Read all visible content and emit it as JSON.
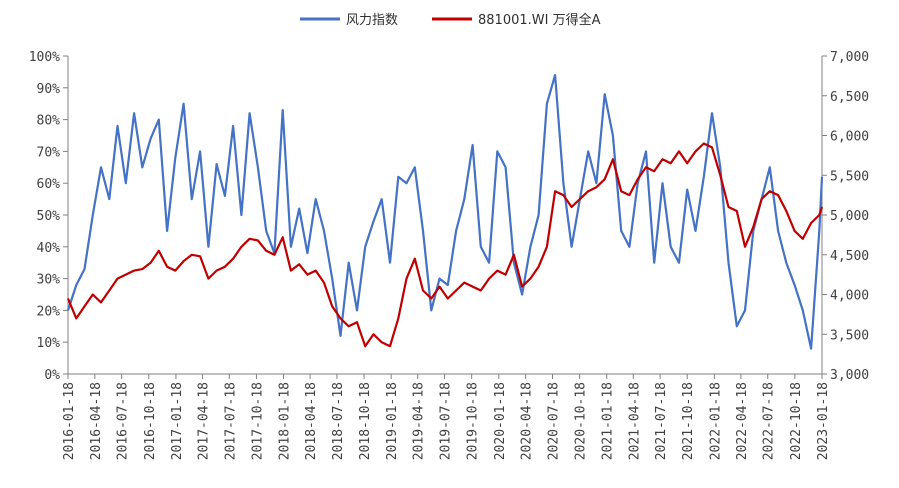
{
  "chart_data": {
    "type": "line",
    "legend_position": "top-center",
    "grid": false,
    "series": [
      {
        "name": "风力指数",
        "axis": "left",
        "color": "#4472C4",
        "unit": "%",
        "points": [
          [
            "2016-01-18",
            20
          ],
          [
            "2016-02-15",
            28
          ],
          [
            "2016-03-14",
            33
          ],
          [
            "2016-04-11",
            50
          ],
          [
            "2016-05-09",
            65
          ],
          [
            "2016-06-06",
            55
          ],
          [
            "2016-07-04",
            78
          ],
          [
            "2016-08-01",
            60
          ],
          [
            "2016-08-29",
            82
          ],
          [
            "2016-09-26",
            65
          ],
          [
            "2016-10-24",
            74
          ],
          [
            "2016-11-21",
            80
          ],
          [
            "2016-12-19",
            45
          ],
          [
            "2017-01-16",
            68
          ],
          [
            "2017-02-13",
            85
          ],
          [
            "2017-03-13",
            55
          ],
          [
            "2017-04-10",
            70
          ],
          [
            "2017-05-08",
            40
          ],
          [
            "2017-06-05",
            66
          ],
          [
            "2017-07-03",
            56
          ],
          [
            "2017-07-31",
            78
          ],
          [
            "2017-08-28",
            50
          ],
          [
            "2017-09-25",
            82
          ],
          [
            "2017-10-23",
            65
          ],
          [
            "2017-11-20",
            45
          ],
          [
            "2017-12-18",
            38
          ],
          [
            "2018-01-15",
            83
          ],
          [
            "2018-02-12",
            40
          ],
          [
            "2018-03-12",
            52
          ],
          [
            "2018-04-09",
            38
          ],
          [
            "2018-05-07",
            55
          ],
          [
            "2018-06-04",
            45
          ],
          [
            "2018-07-02",
            30
          ],
          [
            "2018-07-30",
            12
          ],
          [
            "2018-08-27",
            35
          ],
          [
            "2018-09-24",
            20
          ],
          [
            "2018-10-22",
            40
          ],
          [
            "2018-11-19",
            48
          ],
          [
            "2018-12-17",
            55
          ],
          [
            "2019-01-14",
            35
          ],
          [
            "2019-02-11",
            62
          ],
          [
            "2019-03-11",
            60
          ],
          [
            "2019-04-08",
            65
          ],
          [
            "2019-05-06",
            45
          ],
          [
            "2019-06-03",
            20
          ],
          [
            "2019-07-01",
            30
          ],
          [
            "2019-07-29",
            28
          ],
          [
            "2019-08-26",
            45
          ],
          [
            "2019-09-23",
            55
          ],
          [
            "2019-10-21",
            72
          ],
          [
            "2019-11-18",
            40
          ],
          [
            "2019-12-16",
            35
          ],
          [
            "2020-01-13",
            70
          ],
          [
            "2020-02-10",
            65
          ],
          [
            "2020-03-09",
            35
          ],
          [
            "2020-04-06",
            25
          ],
          [
            "2020-05-04",
            40
          ],
          [
            "2020-06-01",
            50
          ],
          [
            "2020-06-29",
            85
          ],
          [
            "2020-07-27",
            94
          ],
          [
            "2020-08-24",
            60
          ],
          [
            "2020-09-21",
            40
          ],
          [
            "2020-10-19",
            55
          ],
          [
            "2020-11-16",
            70
          ],
          [
            "2020-12-14",
            60
          ],
          [
            "2021-01-11",
            88
          ],
          [
            "2021-02-08",
            75
          ],
          [
            "2021-03-08",
            45
          ],
          [
            "2021-04-05",
            40
          ],
          [
            "2021-05-03",
            60
          ],
          [
            "2021-05-31",
            70
          ],
          [
            "2021-06-28",
            35
          ],
          [
            "2021-07-26",
            60
          ],
          [
            "2021-08-23",
            40
          ],
          [
            "2021-09-20",
            35
          ],
          [
            "2021-10-18",
            58
          ],
          [
            "2021-11-15",
            45
          ],
          [
            "2021-12-13",
            62
          ],
          [
            "2022-01-10",
            82
          ],
          [
            "2022-02-07",
            65
          ],
          [
            "2022-03-07",
            35
          ],
          [
            "2022-04-04",
            15
          ],
          [
            "2022-05-02",
            20
          ],
          [
            "2022-05-30",
            45
          ],
          [
            "2022-06-27",
            55
          ],
          [
            "2022-07-25",
            65
          ],
          [
            "2022-08-22",
            45
          ],
          [
            "2022-09-19",
            35
          ],
          [
            "2022-10-17",
            28
          ],
          [
            "2022-11-14",
            20
          ],
          [
            "2022-12-12",
            8
          ],
          [
            "2023-01-09",
            45
          ],
          [
            "2023-01-18",
            62
          ]
        ]
      },
      {
        "name": "881001.WI 万得全A",
        "axis": "right",
        "color": "#C00000",
        "points": [
          [
            "2016-01-18",
            3950
          ],
          [
            "2016-02-15",
            3700
          ],
          [
            "2016-03-14",
            3850
          ],
          [
            "2016-04-11",
            4000
          ],
          [
            "2016-05-09",
            3900
          ],
          [
            "2016-06-06",
            4050
          ],
          [
            "2016-07-04",
            4200
          ],
          [
            "2016-08-01",
            4250
          ],
          [
            "2016-08-29",
            4300
          ],
          [
            "2016-09-26",
            4320
          ],
          [
            "2016-10-24",
            4400
          ],
          [
            "2016-11-21",
            4550
          ],
          [
            "2016-12-19",
            4350
          ],
          [
            "2017-01-16",
            4300
          ],
          [
            "2017-02-13",
            4420
          ],
          [
            "2017-03-13",
            4500
          ],
          [
            "2017-04-10",
            4480
          ],
          [
            "2017-05-08",
            4200
          ],
          [
            "2017-06-05",
            4300
          ],
          [
            "2017-07-03",
            4350
          ],
          [
            "2017-07-31",
            4450
          ],
          [
            "2017-08-28",
            4600
          ],
          [
            "2017-09-25",
            4700
          ],
          [
            "2017-10-23",
            4680
          ],
          [
            "2017-11-20",
            4550
          ],
          [
            "2017-12-18",
            4500
          ],
          [
            "2018-01-15",
            4720
          ],
          [
            "2018-02-12",
            4300
          ],
          [
            "2018-03-12",
            4380
          ],
          [
            "2018-04-09",
            4250
          ],
          [
            "2018-05-07",
            4300
          ],
          [
            "2018-06-04",
            4150
          ],
          [
            "2018-07-02",
            3850
          ],
          [
            "2018-07-30",
            3700
          ],
          [
            "2018-08-27",
            3600
          ],
          [
            "2018-09-24",
            3650
          ],
          [
            "2018-10-22",
            3350
          ],
          [
            "2018-11-19",
            3500
          ],
          [
            "2018-12-17",
            3400
          ],
          [
            "2019-01-14",
            3350
          ],
          [
            "2019-02-11",
            3700
          ],
          [
            "2019-03-11",
            4200
          ],
          [
            "2019-04-08",
            4450
          ],
          [
            "2019-05-06",
            4050
          ],
          [
            "2019-06-03",
            3950
          ],
          [
            "2019-07-01",
            4100
          ],
          [
            "2019-07-29",
            3950
          ],
          [
            "2019-08-26",
            4050
          ],
          [
            "2019-09-23",
            4150
          ],
          [
            "2019-10-21",
            4100
          ],
          [
            "2019-11-18",
            4050
          ],
          [
            "2019-12-16",
            4200
          ],
          [
            "2020-01-13",
            4300
          ],
          [
            "2020-02-10",
            4250
          ],
          [
            "2020-03-09",
            4500
          ],
          [
            "2020-04-06",
            4100
          ],
          [
            "2020-05-04",
            4200
          ],
          [
            "2020-06-01",
            4350
          ],
          [
            "2020-06-29",
            4600
          ],
          [
            "2020-07-27",
            5300
          ],
          [
            "2020-08-24",
            5250
          ],
          [
            "2020-09-21",
            5100
          ],
          [
            "2020-10-19",
            5200
          ],
          [
            "2020-11-16",
            5300
          ],
          [
            "2020-12-14",
            5350
          ],
          [
            "2021-01-11",
            5450
          ],
          [
            "2021-02-08",
            5700
          ],
          [
            "2021-03-08",
            5300
          ],
          [
            "2021-04-05",
            5250
          ],
          [
            "2021-05-03",
            5450
          ],
          [
            "2021-05-31",
            5600
          ],
          [
            "2021-06-28",
            5550
          ],
          [
            "2021-07-26",
            5700
          ],
          [
            "2021-08-23",
            5650
          ],
          [
            "2021-09-20",
            5800
          ],
          [
            "2021-10-18",
            5650
          ],
          [
            "2021-11-15",
            5800
          ],
          [
            "2021-12-13",
            5900
          ],
          [
            "2022-01-10",
            5850
          ],
          [
            "2022-02-07",
            5500
          ],
          [
            "2022-03-07",
            5100
          ],
          [
            "2022-04-04",
            5050
          ],
          [
            "2022-05-02",
            4600
          ],
          [
            "2022-05-30",
            4850
          ],
          [
            "2022-06-27",
            5200
          ],
          [
            "2022-07-25",
            5300
          ],
          [
            "2022-08-22",
            5250
          ],
          [
            "2022-09-19",
            5050
          ],
          [
            "2022-10-17",
            4800
          ],
          [
            "2022-11-14",
            4700
          ],
          [
            "2022-12-12",
            4900
          ],
          [
            "2023-01-09",
            5000
          ],
          [
            "2023-01-18",
            5100
          ]
        ]
      }
    ],
    "x_ticks": [
      "2016-01-18",
      "2016-04-18",
      "2016-07-18",
      "2016-10-18",
      "2017-01-18",
      "2017-04-18",
      "2017-07-18",
      "2017-10-18",
      "2018-01-18",
      "2018-04-18",
      "2018-07-18",
      "2018-10-18",
      "2019-01-18",
      "2019-04-18",
      "2019-07-18",
      "2019-10-18",
      "2020-01-18",
      "2020-04-18",
      "2020-07-18",
      "2020-10-18",
      "2021-01-18",
      "2021-04-18",
      "2021-07-18",
      "2021-10-18",
      "2022-01-18",
      "2022-04-18",
      "2022-07-18",
      "2022-10-18",
      "2023-01-18"
    ],
    "xlim": [
      "2016-01-18",
      "2023-01-18"
    ],
    "left_axis": {
      "ylim": [
        0,
        100
      ],
      "tick_values": [
        0,
        10,
        20,
        30,
        40,
        50,
        60,
        70,
        80,
        90,
        100
      ],
      "tick_labels": [
        "0%",
        "10%",
        "20%",
        "30%",
        "40%",
        "50%",
        "60%",
        "70%",
        "80%",
        "90%",
        "100%"
      ]
    },
    "right_axis": {
      "ylim": [
        3000,
        7000
      ],
      "tick_values": [
        3000,
        3500,
        4000,
        4500,
        5000,
        5500,
        6000,
        6500,
        7000
      ],
      "tick_labels": [
        "3,000",
        "3,500",
        "4,000",
        "4,500",
        "5,000",
        "5,500",
        "6,000",
        "6,500",
        "7,000"
      ]
    }
  }
}
